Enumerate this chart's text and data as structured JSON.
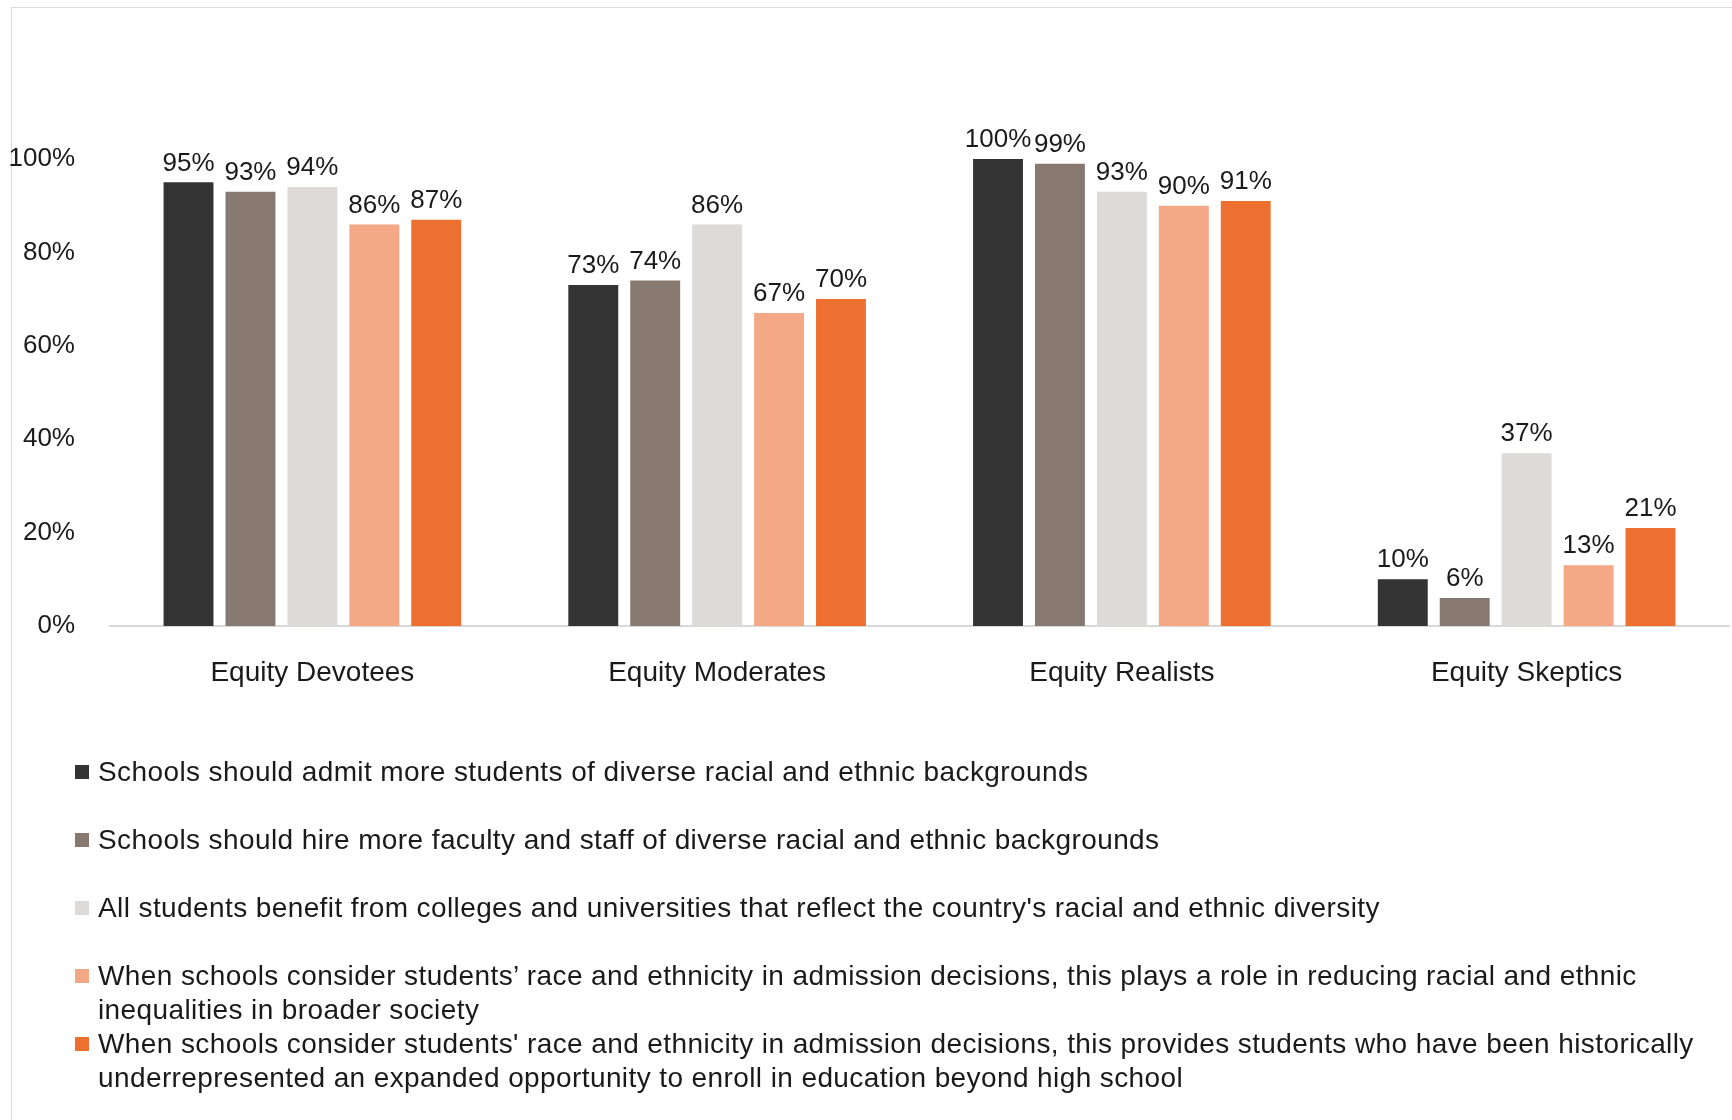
{
  "chart_data": {
    "type": "bar",
    "categories": [
      "Equity Devotees",
      "Equity Moderates",
      "Equity Realists",
      "Equity Skeptics"
    ],
    "series": [
      {
        "name": "Schools should admit more students of diverse racial and ethnic backgrounds",
        "color": "#333333",
        "values": [
          95,
          73,
          100,
          10
        ],
        "value_labels": [
          "95%",
          "73%",
          "100%",
          "10%"
        ]
      },
      {
        "name": "Schools should hire more faculty and staff of diverse racial and ethnic backgrounds",
        "color": "#877870",
        "values": [
          93,
          74,
          99,
          6
        ],
        "value_labels": [
          "93%",
          "74%",
          "99%",
          "6%"
        ]
      },
      {
        "name": "All students benefit from colleges and universities that reflect the country's racial and ethnic diversity",
        "color": "#dedad8",
        "values": [
          94,
          86,
          93,
          37
        ],
        "value_labels": [
          "94%",
          "86%",
          "93%",
          "37%"
        ]
      },
      {
        "name": "When schools consider students’ race and ethnicity in admission decisions, this plays a role in reducing racial and ethnic inequalities in broader society",
        "color": "#f4a886",
        "values": [
          86,
          67,
          90,
          13
        ],
        "value_labels": [
          "86%",
          "67%",
          "90%",
          "13%"
        ]
      },
      {
        "name": "When schools consider students' race and ethnicity in admission decisions, this provides students who have been historically underrepresented an expanded opportunity to enroll in education beyond high school",
        "color": "#ed7030",
        "values": [
          87,
          70,
          91,
          21
        ],
        "value_labels": [
          "87%",
          "70%",
          "91%",
          "21%"
        ]
      }
    ],
    "ylim": [
      0,
      100
    ],
    "yticks": [
      {
        "value": 0,
        "label": "0%"
      },
      {
        "value": 20,
        "label": "20%"
      },
      {
        "value": 40,
        "label": "40%"
      },
      {
        "value": 60,
        "label": "60%"
      },
      {
        "value": 80,
        "label": "80%"
      },
      {
        "value": 100,
        "label": "100%"
      }
    ],
    "legend": "bottom"
  }
}
